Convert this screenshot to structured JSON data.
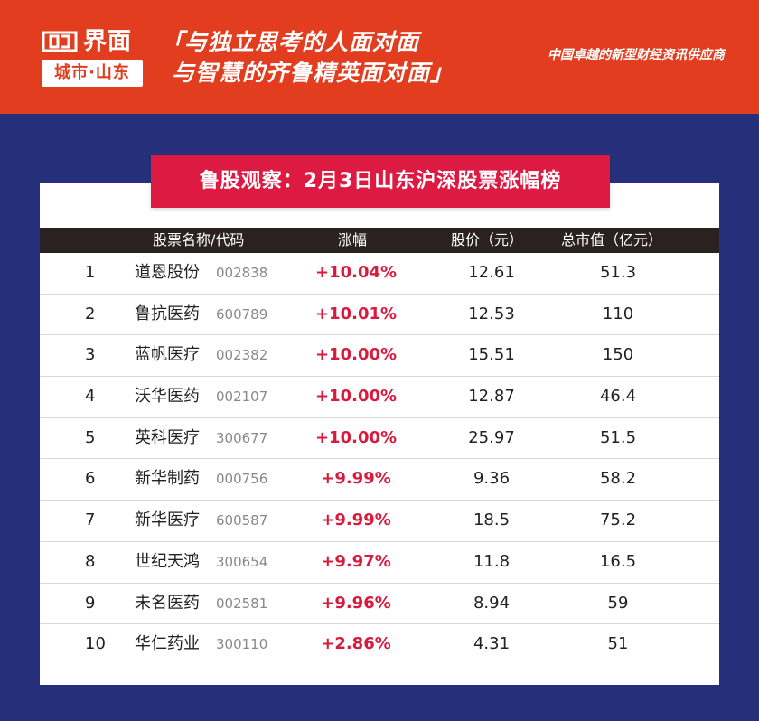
{
  "brand": {
    "logo_word": "界面",
    "logo_sub": "城市·山东"
  },
  "slogan": {
    "line1": "「与独立思考的人面对面",
    "line2": "与智慧的齐鲁精英面对面」"
  },
  "tagline": "中国卓越的新型财经资讯供应商",
  "title": "鲁股观察：2月3日山东沪深股票涨幅榜",
  "columns": {
    "name": "股票名称/代码",
    "change": "涨幅",
    "price": "股价（元）",
    "cap": "总市值（亿元）"
  },
  "rows": [
    {
      "rank": "1",
      "name": "道恩股份",
      "code": "002838",
      "change": "+10.04%",
      "price": "12.61",
      "cap": "51.3"
    },
    {
      "rank": "2",
      "name": "鲁抗医药",
      "code": "600789",
      "change": "+10.01%",
      "price": "12.53",
      "cap": "110"
    },
    {
      "rank": "3",
      "name": "蓝帆医疗",
      "code": "002382",
      "change": "+10.00%",
      "price": "15.51",
      "cap": "150"
    },
    {
      "rank": "4",
      "name": "沃华医药",
      "code": "002107",
      "change": "+10.00%",
      "price": "12.87",
      "cap": "46.4"
    },
    {
      "rank": "5",
      "name": "英科医疗",
      "code": "300677",
      "change": "+10.00%",
      "price": "25.97",
      "cap": "51.5"
    },
    {
      "rank": "6",
      "name": "新华制药",
      "code": "000756",
      "change": "+9.99%",
      "price": "9.36",
      "cap": "58.2"
    },
    {
      "rank": "7",
      "name": "新华医疗",
      "code": "600587",
      "change": "+9.99%",
      "price": "18.5",
      "cap": "75.2"
    },
    {
      "rank": "8",
      "name": "世纪天鸿",
      "code": "300654",
      "change": "+9.97%",
      "price": "11.8",
      "cap": "16.5"
    },
    {
      "rank": "9",
      "name": "未名医药",
      "code": "002581",
      "change": "+9.96%",
      "price": "8.94",
      "cap": "59"
    },
    {
      "rank": "10",
      "name": "华仁药业",
      "code": "300110",
      "change": "+2.86%",
      "price": "4.31",
      "cap": "51"
    }
  ],
  "colors": {
    "header_bg": "#e23d1e",
    "page_bg": "#26307a",
    "title_bg": "#dd1b42",
    "change_text": "#d81a3c"
  }
}
